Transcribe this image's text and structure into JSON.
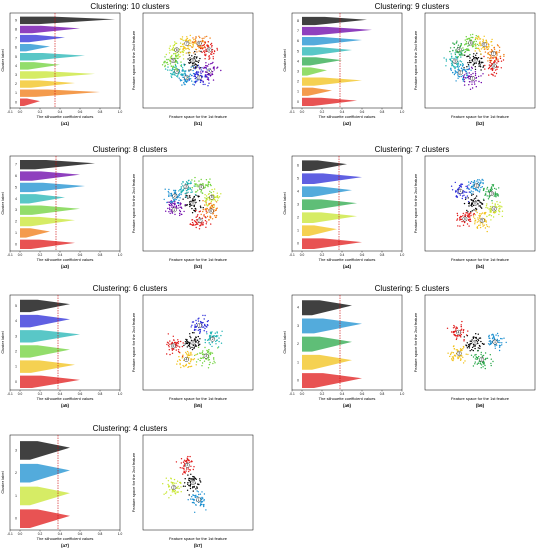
{
  "x_axis_label_silhouette": "The silhouette coefficient values",
  "y_axis_label_silhouette": "Cluster label",
  "x_axis_label_scatter": "Feature space for the 1st feature",
  "y_axis_label_scatter": "Feature space for the 2nd feature",
  "chart_data": [
    {
      "type": "bar",
      "title": "Clustering: 10 clusters",
      "n_clusters": 10,
      "silhouette_caption": "(a1)",
      "scatter_caption": "(b1)",
      "cluster_labels": [
        "0",
        "1",
        "2",
        "3",
        "4",
        "5",
        "6",
        "7",
        "8",
        "9"
      ],
      "cluster_max_silhouette": [
        0.2,
        0.8,
        0.55,
        0.75,
        0.4,
        0.65,
        0.3,
        0.45,
        0.6,
        0.95
      ],
      "avg_silhouette": 0.35,
      "xlim": [
        -0.1,
        1.0
      ],
      "xticks": [
        "-0.1",
        "0.0",
        "0.2",
        "0.4",
        "0.6",
        "0.8",
        "1.0"
      ]
    },
    {
      "type": "bar",
      "title": "Clustering: 9 clusters",
      "n_clusters": 9,
      "silhouette_caption": "(a2)",
      "scatter_caption": "(b2)",
      "cluster_labels": [
        "0",
        "1",
        "2",
        "3",
        "4",
        "5",
        "6",
        "7",
        "8"
      ],
      "cluster_max_silhouette": [
        0.55,
        0.3,
        0.6,
        0.25,
        0.4,
        0.5,
        0.6,
        0.7,
        0.65
      ],
      "avg_silhouette": 0.38,
      "xlim": [
        -0.1,
        1.0
      ],
      "xticks": [
        "-0.1",
        "0.0",
        "0.2",
        "0.4",
        "0.6",
        "0.8",
        "1.0"
      ]
    },
    {
      "type": "bar",
      "title": "Clustering: 8 clusters",
      "n_clusters": 8,
      "silhouette_caption": "(a3)",
      "scatter_caption": "(b3)",
      "cluster_labels": [
        "0",
        "1",
        "2",
        "3",
        "4",
        "5",
        "6",
        "7"
      ],
      "cluster_max_silhouette": [
        0.55,
        0.3,
        0.55,
        0.6,
        0.45,
        0.65,
        0.6,
        0.75
      ],
      "avg_silhouette": 0.36,
      "xlim": [
        -0.1,
        1.0
      ],
      "xticks": [
        "-0.1",
        "0.0",
        "0.2",
        "0.4",
        "0.6",
        "0.8",
        "1.0"
      ]
    },
    {
      "type": "bar",
      "title": "Clustering: 7 clusters",
      "n_clusters": 7,
      "silhouette_caption": "(a4)",
      "scatter_caption": "(b4)",
      "cluster_labels": [
        "0",
        "1",
        "2",
        "3",
        "4",
        "5",
        "6"
      ],
      "cluster_max_silhouette": [
        0.6,
        0.35,
        0.55,
        0.55,
        0.5,
        0.6,
        0.45
      ],
      "avg_silhouette": 0.37,
      "xlim": [
        -0.1,
        1.0
      ],
      "xticks": [
        "-0.1",
        "0.0",
        "0.2",
        "0.4",
        "0.6",
        "0.8",
        "1.0"
      ]
    },
    {
      "type": "bar",
      "title": "Clustering: 6 clusters",
      "n_clusters": 6,
      "silhouette_caption": "(a5)",
      "scatter_caption": "(b5)",
      "cluster_labels": [
        "0",
        "1",
        "2",
        "3",
        "4",
        "5"
      ],
      "cluster_max_silhouette": [
        0.6,
        0.55,
        0.5,
        0.6,
        0.5,
        0.5
      ],
      "avg_silhouette": 0.38,
      "xlim": [
        -0.1,
        1.0
      ],
      "xticks": [
        "-0.1",
        "0.0",
        "0.2",
        "0.4",
        "0.6",
        "0.8",
        "1.0"
      ]
    },
    {
      "type": "bar",
      "title": "Clustering: 5 clusters",
      "n_clusters": 5,
      "silhouette_caption": "(a6)",
      "scatter_caption": "(b6)",
      "cluster_labels": [
        "0",
        "1",
        "2",
        "3",
        "4"
      ],
      "cluster_max_silhouette": [
        0.6,
        0.5,
        0.5,
        0.6,
        0.5
      ],
      "avg_silhouette": 0.38,
      "xlim": [
        -0.1,
        1.0
      ],
      "xticks": [
        "-0.1",
        "0.0",
        "0.2",
        "0.4",
        "0.6",
        "0.8",
        "1.0"
      ]
    },
    {
      "type": "bar",
      "title": "Clustering: 4 clusters",
      "n_clusters": 4,
      "silhouette_caption": "(a7)",
      "scatter_caption": "(b7)",
      "cluster_labels": [
        "0",
        "1",
        "2",
        "3"
      ],
      "cluster_max_silhouette": [
        0.5,
        0.5,
        0.5,
        0.5
      ],
      "avg_silhouette": 0.38,
      "xlim": [
        -0.1,
        1.0
      ],
      "xticks": [
        "-0.1",
        "0.0",
        "0.2",
        "0.4",
        "0.6",
        "0.8",
        "1.0"
      ]
    }
  ]
}
